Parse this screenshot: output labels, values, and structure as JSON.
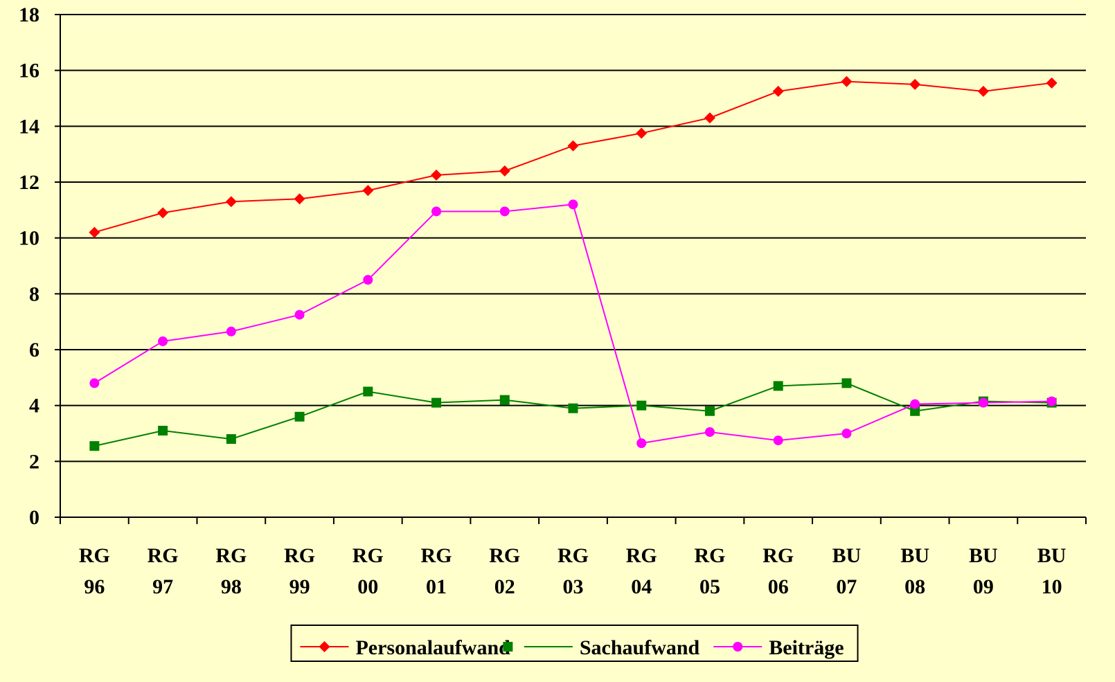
{
  "chart_data": {
    "type": "line",
    "categories": [
      "RG\n96",
      "RG\n97",
      "RG\n98",
      "RG\n99",
      "RG\n00",
      "RG\n01",
      "RG\n02",
      "RG\n03",
      "RG\n04",
      "RG\n05",
      "RG\n06",
      "BU\n07",
      "BU\n08",
      "BU\n09",
      "BU\n10"
    ],
    "series": [
      {
        "name": "Personalaufwand",
        "color": "#ff0000",
        "marker": "diamond",
        "values": [
          10.2,
          10.9,
          11.3,
          11.4,
          11.7,
          12.25,
          12.4,
          13.3,
          13.75,
          14.3,
          15.25,
          15.6,
          15.5,
          15.25,
          15.55
        ]
      },
      {
        "name": "Sachaufwand",
        "color": "#008000",
        "marker": "square",
        "values": [
          2.55,
          3.1,
          2.8,
          3.6,
          4.5,
          4.1,
          4.2,
          3.9,
          4.0,
          3.8,
          4.7,
          4.8,
          3.8,
          4.15,
          4.1
        ]
      },
      {
        "name": "Beiträge",
        "color": "#ff00ff",
        "marker": "circle",
        "values": [
          4.8,
          6.3,
          6.65,
          7.25,
          8.5,
          10.95,
          10.95,
          11.2,
          2.65,
          3.05,
          2.75,
          3.0,
          4.05,
          4.1,
          4.15
        ]
      }
    ],
    "ylim": [
      0,
      18
    ],
    "yticks": [
      0,
      2,
      4,
      6,
      8,
      10,
      12,
      14,
      16,
      18
    ],
    "grid": true,
    "legend": "bottom"
  }
}
